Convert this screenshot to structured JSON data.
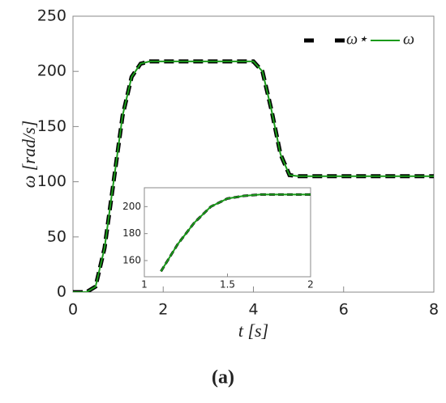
{
  "chart_data": [
    {
      "type": "line",
      "x_label": "t [s]",
      "y_label": "ω [rad/s]",
      "x": [
        0,
        0.3,
        0.5,
        0.7,
        0.9,
        1.1,
        1.3,
        1.5,
        1.7,
        2,
        3,
        4,
        4.2,
        4.4,
        4.6,
        4.8,
        5,
        6,
        7,
        8
      ],
      "series": [
        {
          "name": "ω⋆",
          "color": "#000000",
          "style": "dashed",
          "values": [
            0,
            0,
            5,
            40,
            100,
            160,
            195,
            207,
            209,
            209,
            209,
            209,
            200,
            165,
            125,
            106,
            105,
            105,
            105,
            105
          ]
        },
        {
          "name": "ω",
          "color": "#1a9a1a",
          "style": "solid",
          "values": [
            0,
            0,
            5,
            40,
            100,
            160,
            195,
            207,
            209,
            209,
            209,
            209,
            200,
            165,
            125,
            106,
            105,
            105,
            105,
            105
          ]
        }
      ],
      "xlim": [
        0,
        8
      ],
      "ylim": [
        0,
        250
      ],
      "xticks": [
        0,
        2,
        4,
        6,
        8
      ],
      "yticks": [
        0,
        50,
        100,
        150,
        200,
        250
      ],
      "legend": "upper right"
    },
    {
      "type": "line",
      "x": [
        1.1,
        1.2,
        1.3,
        1.4,
        1.5,
        1.6,
        1.7,
        1.8,
        2
      ],
      "series": [
        {
          "color": "#000000",
          "style": "dashed",
          "values": [
            152,
            172,
            188,
            200,
            206,
            208,
            209,
            209,
            209
          ]
        },
        {
          "color": "#1a9a1a",
          "style": "solid",
          "values": [
            152,
            172,
            188,
            200,
            206,
            208,
            209,
            209,
            209
          ]
        }
      ],
      "xlim": [
        1,
        2
      ],
      "ylim": [
        148,
        214
      ],
      "xticks": [
        1,
        1.5,
        2
      ],
      "yticks": [
        160,
        180,
        200
      ]
    }
  ],
  "caption": "(a)"
}
